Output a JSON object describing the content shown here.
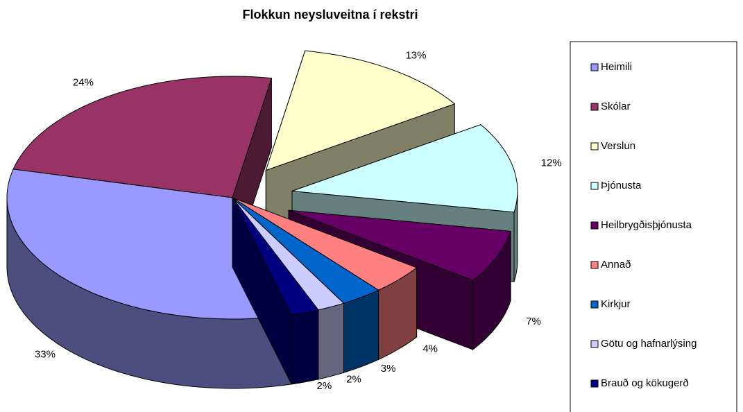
{
  "chart_data": {
    "type": "pie3d",
    "title": "Flokkun neysluveitna í rekstri",
    "categories": [
      "Heimili",
      "Skólar",
      "Verslun",
      "Þjónusta",
      "Heilbrygðisþjónusta",
      "Annað",
      "Kirkjur",
      "Götu og hafnarlýsing",
      "Brauð og kökugerð"
    ],
    "values": [
      33,
      24,
      13,
      12,
      7,
      4,
      3,
      2,
      2
    ],
    "value_labels": [
      "33%",
      "24%",
      "13%",
      "12%",
      "7%",
      "4%",
      "3%",
      "2%",
      "2%"
    ],
    "colors": [
      "#9999ff",
      "#993366",
      "#ffffcc",
      "#ccffff",
      "#660066",
      "#ff8080",
      "#0066cc",
      "#ccccff",
      "#000080"
    ],
    "legend": "right"
  }
}
